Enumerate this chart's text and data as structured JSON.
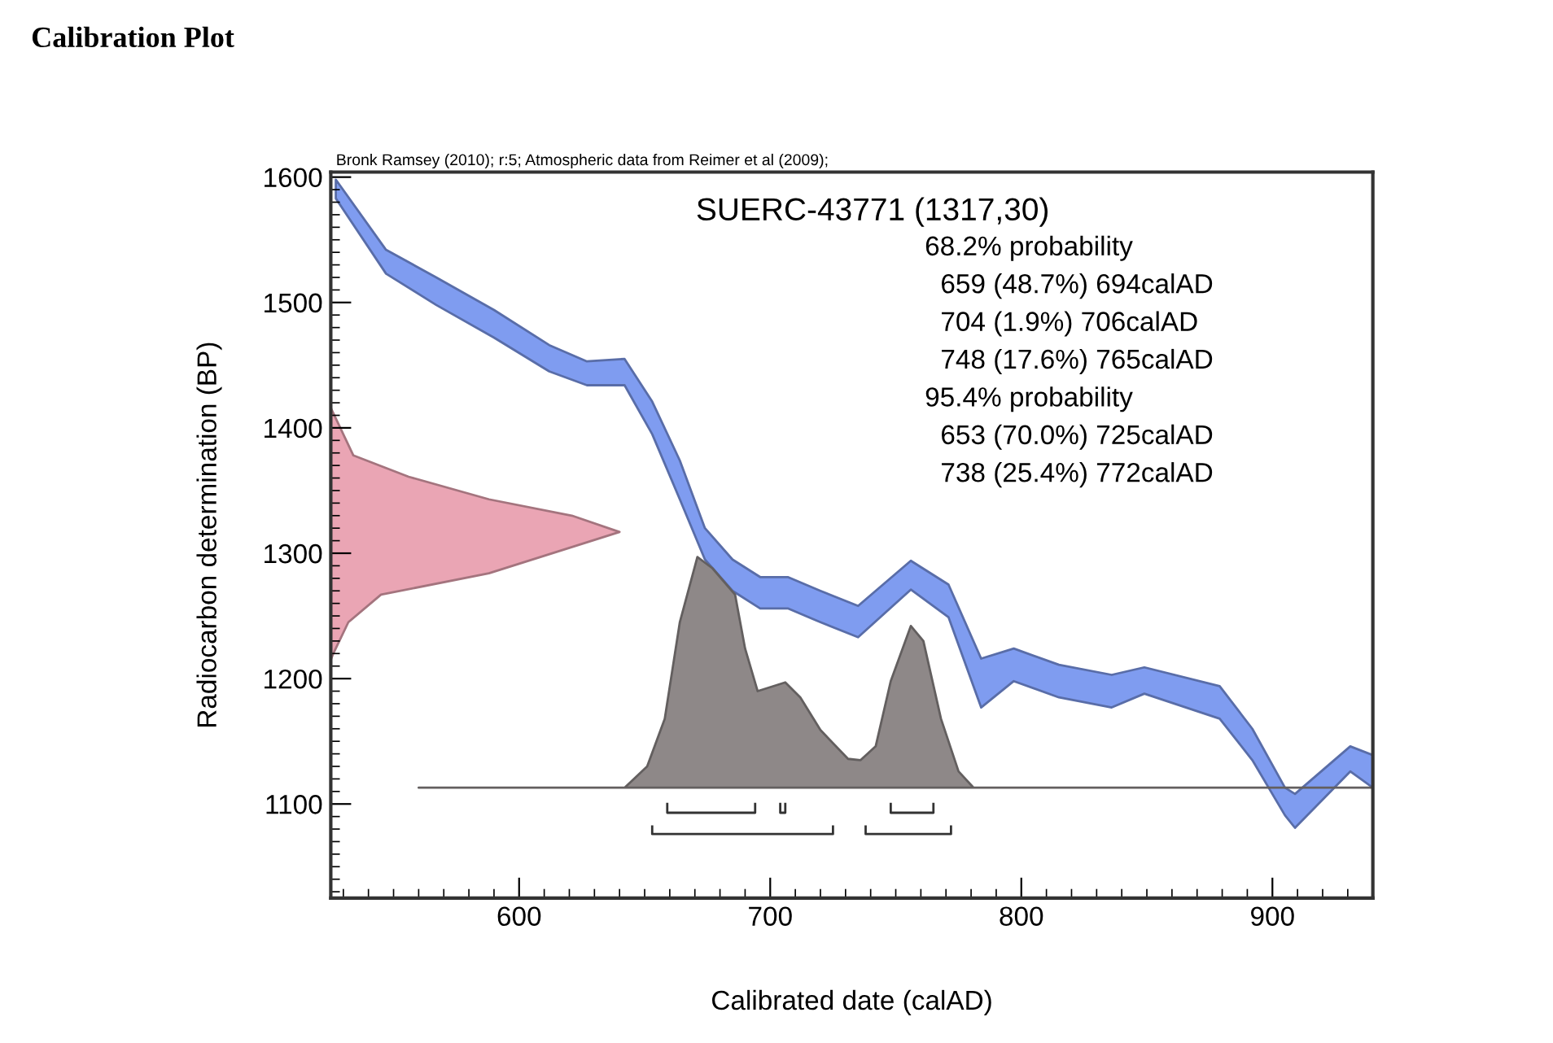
{
  "chart_data": {
    "type": "area",
    "title": "Calibration Plot",
    "xlabel": "Calibrated date (calAD)",
    "ylabel": "Radiocarbon determination (BP)",
    "xlim": [
      525,
      940
    ],
    "ylim": [
      1025,
      1604
    ],
    "xticks": [
      600,
      700,
      800,
      900
    ],
    "yticks": [
      1100,
      1200,
      1300,
      1400,
      1500,
      1600
    ],
    "grid": false,
    "legend": false,
    "annotations": [
      "Bronk Ramsey (2010); r:5; Atmospheric data from Reimer et al (2009);",
      "SUERC-43771 (1317,30)",
      "68.2% probability",
      "659 (48.7%) 694calAD",
      "704 (1.9%) 706calAD",
      "748 (17.6%) 765calAD",
      "95.4% probability",
      "653 (70.0%) 725calAD",
      "738 (25.4%) 772calAD"
    ],
    "series": [
      {
        "color": "#7f9cf0",
        "x": [
          527,
          547,
          567,
          590,
          612,
          627,
          642,
          653,
          664,
          674,
          685,
          696,
          707,
          720,
          735,
          756,
          771,
          784,
          797,
          815,
          836,
          849,
          879,
          892,
          905,
          909,
          931,
          940,
          940,
          931,
          909,
          905,
          892,
          879,
          849,
          836,
          815,
          797,
          784,
          771,
          756,
          735,
          720,
          707,
          696,
          685,
          674,
          664,
          653,
          642,
          627,
          612,
          590,
          567,
          547,
          527
        ],
        "values": [
          1598,
          1542,
          1520,
          1494,
          1466,
          1453,
          1455,
          1421,
          1374,
          1320,
          1295,
          1281,
          1281,
          1270,
          1258,
          1294,
          1275,
          1216,
          1224,
          1211,
          1203,
          1209,
          1194,
          1160,
          1113,
          1108,
          1146,
          1139,
          1113,
          1126,
          1081,
          1091,
          1135,
          1168,
          1188,
          1177,
          1185,
          1198,
          1177,
          1249,
          1271,
          1233,
          1245,
          1256,
          1256,
          1270,
          1295,
          1343,
          1395,
          1434,
          1434,
          1445,
          1472,
          1498,
          1523,
          1583
        ]
      },
      {
        "color": "#8e8888",
        "x": [
          560,
          642,
          651,
          658,
          664,
          671,
          677,
          686,
          690,
          695,
          706,
          712,
          720,
          731,
          736,
          742,
          748,
          756,
          761,
          768,
          775,
          781,
          940
        ],
        "values": [
          1113,
          1113,
          1130,
          1168,
          1245,
          1297,
          1288,
          1267,
          1224,
          1190,
          1197,
          1185,
          1159,
          1136,
          1135,
          1146,
          1198,
          1242,
          1230,
          1168,
          1126,
          1113,
          1113
        ]
      },
      {
        "color": "#eaa5b4",
        "x": [
          525,
          534,
          556,
          588,
          621,
          640,
          629,
          588,
          545,
          532,
          526,
          525
        ],
        "values": [
          1416,
          1378,
          1361,
          1343,
          1330,
          1317,
          1310,
          1284,
          1267,
          1245,
          1220,
          1215
        ]
      },
      {
        "type": "line",
        "color": "#333333",
        "x": [
          659,
          659,
          694,
          694,
          null,
          704,
          704,
          706,
          706,
          null,
          748,
          748,
          765,
          765
        ],
        "values": [
          1100,
          1093,
          1093,
          1100,
          null,
          1100,
          1093,
          1093,
          1100,
          null,
          1100,
          1093,
          1093,
          1100
        ]
      },
      {
        "type": "line",
        "color": "#333333",
        "x": [
          653,
          653,
          725,
          725,
          null,
          738,
          738,
          772,
          772
        ],
        "values": [
          1082,
          1076,
          1076,
          1082,
          null,
          1082,
          1076,
          1076,
          1082
        ]
      }
    ]
  }
}
